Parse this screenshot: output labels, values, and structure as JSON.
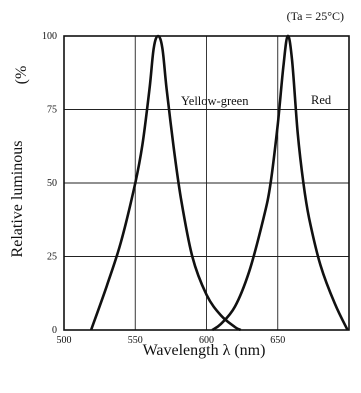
{
  "chart_data": {
    "type": "line",
    "condition": "(Ta = 25°C)",
    "xlabel": "Wavelength λ (nm)",
    "ylabel": "Relative luminous",
    "ylabel_unit": "(%",
    "xlim": [
      500,
      700
    ],
    "ylim": [
      0,
      100
    ],
    "x_ticks": [
      500,
      550,
      600,
      650
    ],
    "y_ticks": [
      0,
      25,
      50,
      75,
      100
    ],
    "grid": true,
    "series": [
      {
        "name": "Yellow-green",
        "x": [
          519,
          530,
          540,
          550,
          555,
          560,
          563,
          566,
          569,
          572,
          577,
          582,
          590,
          600,
          610,
          620,
          624
        ],
        "y": [
          0,
          15,
          30,
          50,
          63,
          82,
          96,
          100,
          96,
          82,
          62,
          45,
          25,
          12,
          5,
          1,
          0
        ]
      },
      {
        "name": "Red",
        "x": [
          604,
          610,
          620,
          630,
          640,
          645,
          650,
          654,
          657,
          660,
          664,
          668,
          672,
          680,
          690,
          699
        ],
        "y": [
          0,
          2,
          8,
          20,
          38,
          50,
          70,
          90,
          100,
          92,
          67,
          50,
          38,
          22,
          9,
          0
        ]
      }
    ]
  }
}
